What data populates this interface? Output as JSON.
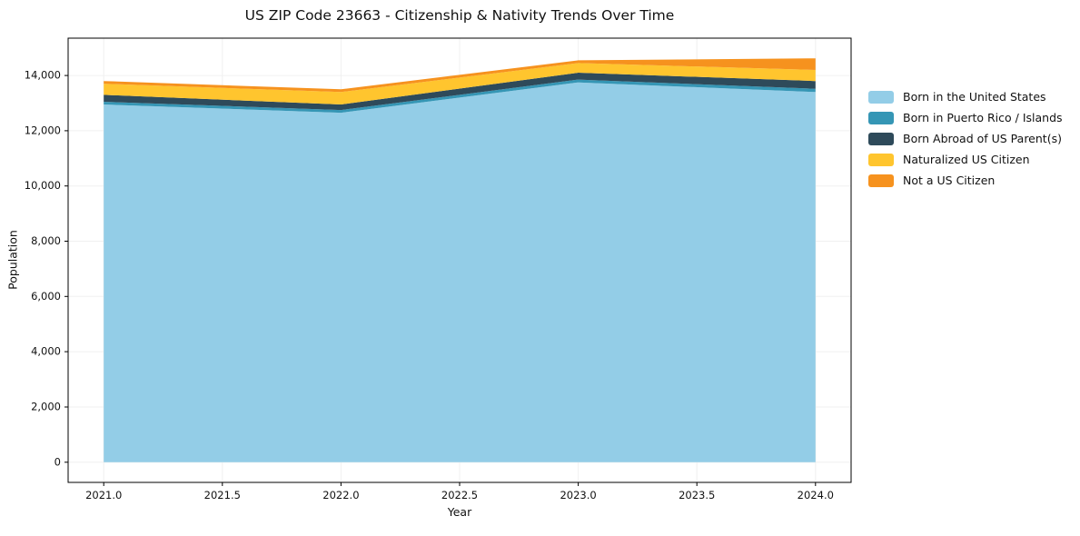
{
  "title": "US ZIP Code 23663 - Citizenship & Nativity Trends Over Time",
  "xlabel": "Year",
  "ylabel": "Population",
  "chart_data": {
    "type": "area",
    "stacked": true,
    "title": "US ZIP Code 23663 - Citizenship & Nativity Trends Over Time",
    "xlabel": "Year",
    "ylabel": "Population",
    "x": [
      2021,
      2022,
      2023,
      2024
    ],
    "series": [
      {
        "name": "Born in the United States",
        "color": "#93cde7",
        "values": [
          12950,
          12650,
          13750,
          13400
        ]
      },
      {
        "name": "Born in Puerto Rico / Islands",
        "color": "#3596b5",
        "values": [
          100,
          100,
          100,
          120
        ]
      },
      {
        "name": "Born Abroad of US Parent(s)",
        "color": "#2e4a5a",
        "values": [
          250,
          200,
          250,
          280
        ]
      },
      {
        "name": "Naturalized US Citizen",
        "color": "#ffc52e",
        "values": [
          400,
          450,
          350,
          400
        ]
      },
      {
        "name": "Not a US Citizen",
        "color": "#f6921e",
        "values": [
          100,
          100,
          100,
          420
        ]
      }
    ],
    "xlim": [
      2020.85,
      2024.15
    ],
    "ylim": [
      -731,
      15351
    ],
    "xticks": {
      "values": [
        2021,
        2021.5,
        2022,
        2022.5,
        2023,
        2023.5,
        2024
      ],
      "labels": [
        "2021.0",
        "2021.5",
        "2022.0",
        "2022.5",
        "2023.0",
        "2023.5",
        "2024.0"
      ]
    },
    "yticks": {
      "values": [
        0,
        2000,
        4000,
        6000,
        8000,
        10000,
        12000,
        14000
      ],
      "labels": [
        "0",
        "2,000",
        "4,000",
        "6,000",
        "8,000",
        "10,000",
        "12,000",
        "14,000"
      ]
    },
    "grid": true,
    "grid_color": "#f0f0f0",
    "axis_color": "#000000",
    "tick_label_color": "#111111",
    "legend_position": "right"
  }
}
